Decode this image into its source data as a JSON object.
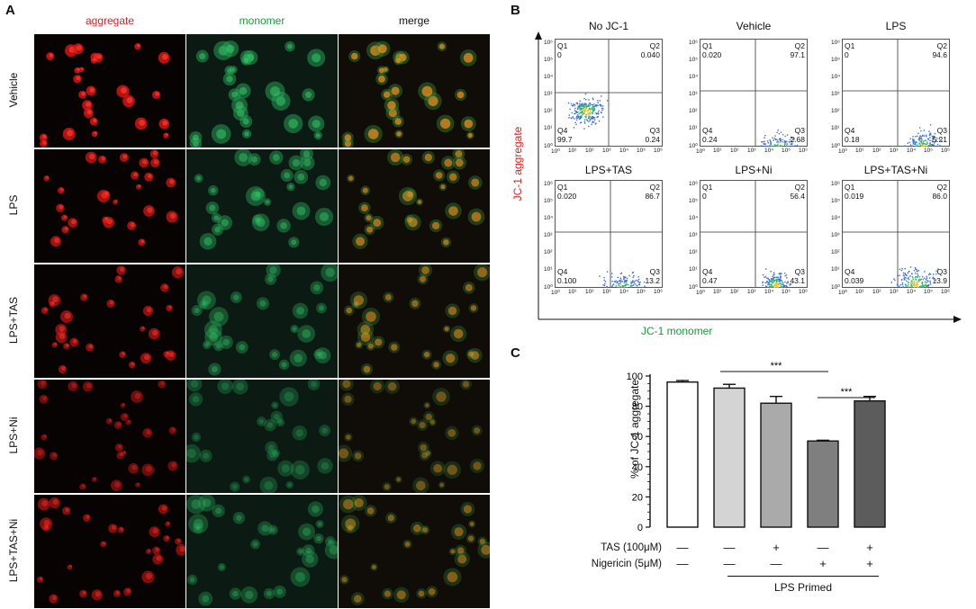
{
  "panel_a": {
    "letter": "A",
    "columns": [
      "aggregate",
      "monomer",
      "merge"
    ],
    "rows": [
      "Vehicle",
      "LPS",
      "LPS+TAS",
      "LPS+Ni",
      "LPS+TAS+Ni"
    ],
    "colors": {
      "aggregate": "#e0201f",
      "monomer": "#1a9b3a",
      "merge": "#111111"
    }
  },
  "panel_b": {
    "letter": "B",
    "y_axis_label": "JC-1 aggregate",
    "x_axis_label": "JC-1 monomer",
    "tick_labels": [
      "10⁰",
      "10¹",
      "10²",
      "10³",
      "10⁴",
      "10⁵",
      "10⁶"
    ],
    "plots": [
      {
        "title": "No JC-1",
        "q1": "0",
        "q2": "0.040",
        "q3": "0.24",
        "q4": "99.7"
      },
      {
        "title": "Vehicle",
        "q1": "0.020",
        "q2": "97.1",
        "q3": "2.68",
        "q4": "0.24"
      },
      {
        "title": "LPS",
        "q1": "0",
        "q2": "94.6",
        "q3": "5.21",
        "q4": "0.18"
      },
      {
        "title": "LPS+TAS",
        "q1": "0.020",
        "q2": "86.7",
        "q3": "13.2",
        "q4": "0.100"
      },
      {
        "title": "LPS+Ni",
        "q1": "0",
        "q2": "56.4",
        "q3": "43.1",
        "q4": "0.47"
      },
      {
        "title": "LPS+TAS+Ni",
        "q1": "0.019",
        "q2": "86.0",
        "q3": "13.9",
        "q4": "0.039"
      }
    ],
    "quadrant_names": [
      "Q1",
      "Q2",
      "Q3",
      "Q4"
    ]
  },
  "panel_c": {
    "letter": "C",
    "significance": [
      "***",
      "***"
    ],
    "treatment_rows": [
      {
        "label": "TAS (100μM)",
        "marks": [
          "—",
          "—",
          "+",
          "—",
          "+"
        ]
      },
      {
        "label": "Nigericin (5μM)",
        "marks": [
          "—",
          "—",
          "—",
          "+",
          "+"
        ]
      }
    ],
    "group_label": "LPS Primed"
  },
  "chart_data": {
    "type": "bar",
    "categories": [
      "1",
      "2",
      "3",
      "4",
      "5"
    ],
    "values": [
      96,
      92,
      82,
      57,
      83.5
    ],
    "errors": [
      1,
      2.5,
      4.5,
      0.5,
      3
    ],
    "bar_colors": [
      "#ffffff",
      "#d4d4d4",
      "#aaaaaa",
      "#7f7f7f",
      "#5c5c5c"
    ],
    "ylabel": "% of JC-1 aggregate",
    "ylim": [
      0,
      100
    ],
    "yticks": [
      0,
      20,
      40,
      60,
      80,
      100
    ],
    "xlabel": "",
    "title": ""
  }
}
